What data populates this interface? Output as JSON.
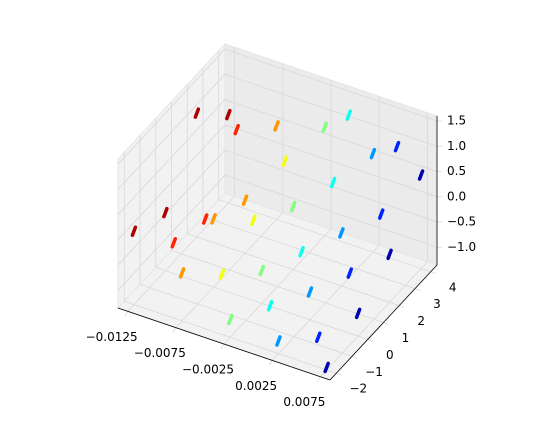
{
  "chart_data": {
    "type": "scatter3d",
    "cmap": "jet",
    "grid": true,
    "xlim": [
      -0.0135,
      0.0085
    ],
    "ylim": [
      -2.4,
      4.4
    ],
    "zlim": [
      -1.35,
      1.6
    ],
    "xticks": [
      {
        "value": -0.0125,
        "label": "−0.0125"
      },
      {
        "value": -0.0075,
        "label": "−0.0075"
      },
      {
        "value": -0.0025,
        "label": "−0.0025"
      },
      0.0025,
      0.0075
    ],
    "yticks": [
      {
        "value": -2,
        "label": "−2"
      },
      {
        "value": -1,
        "label": "−1"
      },
      0,
      1,
      2,
      3,
      4
    ],
    "zticks": [
      {
        "value": -1.0,
        "label": "−1.0"
      },
      {
        "value": -0.5,
        "label": "−0.5"
      },
      {
        "value": 0.0,
        "label": "0.0"
      },
      0.5,
      {
        "value": 1.0,
        "label": "1.0"
      },
      1.5
    ],
    "x": [
      -0.0125,
      -0.0125,
      -0.0125,
      -0.0125,
      -0.01,
      -0.01,
      -0.01,
      -0.0075,
      -0.0075,
      -0.0075,
      -0.0075,
      -0.005,
      -0.005,
      -0.005,
      -0.0025,
      -0.0025,
      -0.0025,
      -0.0025,
      0,
      0,
      0,
      0,
      0.0025,
      0.0025,
      0.0025,
      0.0025,
      0.005,
      0.005,
      0.005,
      0.005,
      0.0075,
      0.0075,
      0.0075,
      0.0075
    ],
    "y": [
      -2,
      0,
      2,
      4,
      -1,
      1,
      3,
      -2,
      0,
      2,
      4,
      -1,
      1,
      3,
      -2,
      0,
      2,
      4,
      -1,
      1,
      3,
      4,
      -2,
      0,
      2,
      4,
      -1,
      1,
      3,
      4,
      -2,
      0,
      2,
      4
    ],
    "z": [
      0.1,
      -0.2,
      1.1,
      0.4,
      -0.3,
      -0.5,
      0.6,
      -0.4,
      0.0,
      -0.3,
      0.5,
      -0.6,
      -0.2,
      0.3,
      -1.0,
      -0.7,
      -0.1,
      0.8,
      -0.9,
      -0.5,
      0.2,
      1.2,
      -1.1,
      -0.8,
      -0.3,
      0.6,
      -1.2,
      -0.6,
      -0.1,
      0.9,
      -1.3,
      -0.9,
      -0.4,
      0.5
    ]
  }
}
